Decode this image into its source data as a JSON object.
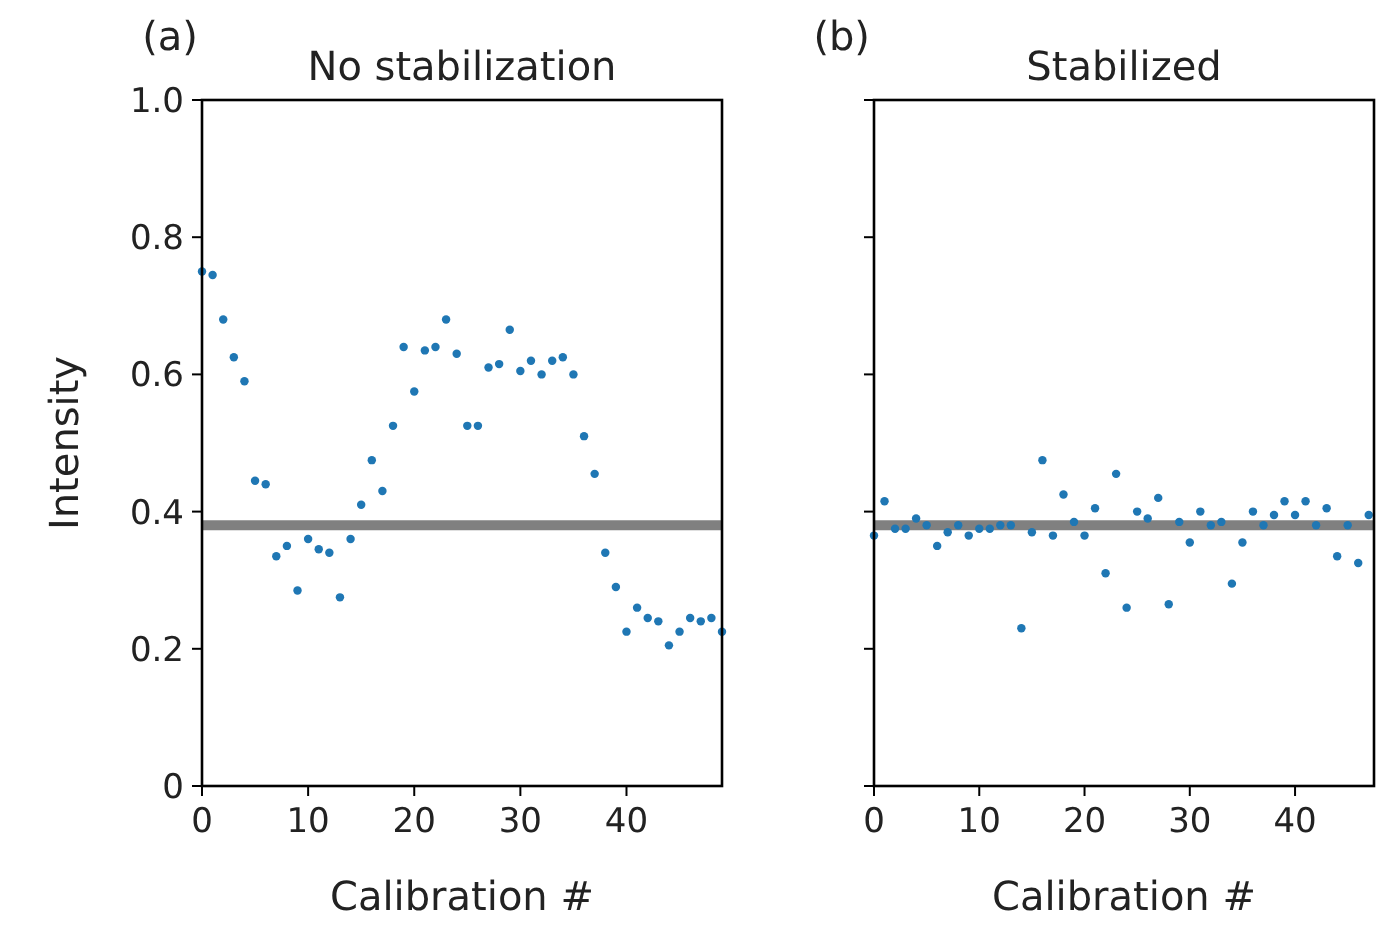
{
  "chart_data": [
    {
      "type": "scatter",
      "title": "No stabilization",
      "annotations": [
        "(a)"
      ],
      "xlabel": "Calibration #",
      "ylabel": "Intensity",
      "x": [
        0,
        1,
        2,
        3,
        4,
        5,
        6,
        7,
        8,
        9,
        10,
        11,
        12,
        13,
        14,
        15,
        16,
        17,
        18,
        19,
        20,
        21,
        22,
        23,
        24,
        25,
        26,
        27,
        28,
        29,
        30,
        31,
        32,
        33,
        34,
        35,
        36,
        37,
        38,
        39,
        40,
        41,
        42,
        43,
        44,
        45,
        46,
        47,
        48,
        49
      ],
      "series": [
        {
          "color": "#1f77b4",
          "values": [
            0.75,
            0.745,
            0.68,
            0.625,
            0.59,
            0.445,
            0.44,
            0.335,
            0.35,
            0.285,
            0.36,
            0.345,
            0.34,
            0.275,
            0.36,
            0.41,
            0.475,
            0.43,
            0.525,
            0.64,
            0.575,
            0.635,
            0.64,
            0.68,
            0.63,
            0.525,
            0.525,
            0.61,
            0.615,
            0.665,
            0.605,
            0.62,
            0.6,
            0.62,
            0.625,
            0.6,
            0.51,
            0.455,
            0.34,
            0.29,
            0.225,
            0.26,
            0.245,
            0.24,
            0.205,
            0.225,
            0.245,
            0.24,
            0.245,
            0.225
          ]
        }
      ],
      "xlim": [
        0,
        49
      ],
      "xticks": [
        0,
        10,
        20,
        30,
        40
      ],
      "ylim": [
        0,
        1
      ],
      "yticks": [
        0,
        0.2,
        0.4,
        0.6,
        0.8,
        {
          "value": 1,
          "label": "1.0"
        }
      ],
      "marker": "circle",
      "grid": false,
      "ref_lines": [
        {
          "axis": "y",
          "value": 0.38,
          "color": "#808080"
        }
      ]
    },
    {
      "type": "scatter",
      "title": "Stabilized",
      "annotations": [
        "(b)"
      ],
      "xlabel": "Calibration #",
      "x": [
        0,
        1,
        2,
        3,
        4,
        5,
        6,
        7,
        8,
        9,
        10,
        11,
        12,
        13,
        14,
        15,
        16,
        17,
        18,
        19,
        20,
        21,
        22,
        23,
        24,
        25,
        26,
        27,
        28,
        29,
        30,
        31,
        32,
        33,
        34,
        35,
        36,
        37,
        38,
        39,
        40,
        41,
        42,
        43,
        44,
        45,
        46,
        47
      ],
      "series": [
        {
          "color": "#1f77b4",
          "values": [
            0.365,
            0.415,
            0.375,
            0.375,
            0.39,
            0.38,
            0.35,
            0.37,
            0.38,
            0.365,
            0.375,
            0.375,
            0.38,
            0.38,
            0.23,
            0.37,
            0.475,
            0.365,
            0.425,
            0.385,
            0.365,
            0.405,
            0.31,
            0.455,
            0.26,
            0.4,
            0.39,
            0.42,
            0.265,
            0.385,
            0.355,
            0.4,
            0.38,
            0.385,
            0.295,
            0.355,
            0.4,
            0.38,
            0.395,
            0.415,
            0.395,
            0.415,
            0.38,
            0.405,
            0.335,
            0.38,
            0.325,
            0.395
          ]
        }
      ],
      "xlim": [
        0,
        47.5
      ],
      "xticks": [
        0,
        10,
        20,
        30,
        40
      ],
      "ylim": [
        0,
        1
      ],
      "yticks": [
        0,
        0.2,
        0.4,
        0.6,
        0.8,
        1
      ],
      "tick_labels": "x",
      "marker": "circle",
      "grid": false,
      "ref_lines": [
        {
          "axis": "y",
          "value": 0.38,
          "color": "#808080"
        }
      ]
    }
  ]
}
